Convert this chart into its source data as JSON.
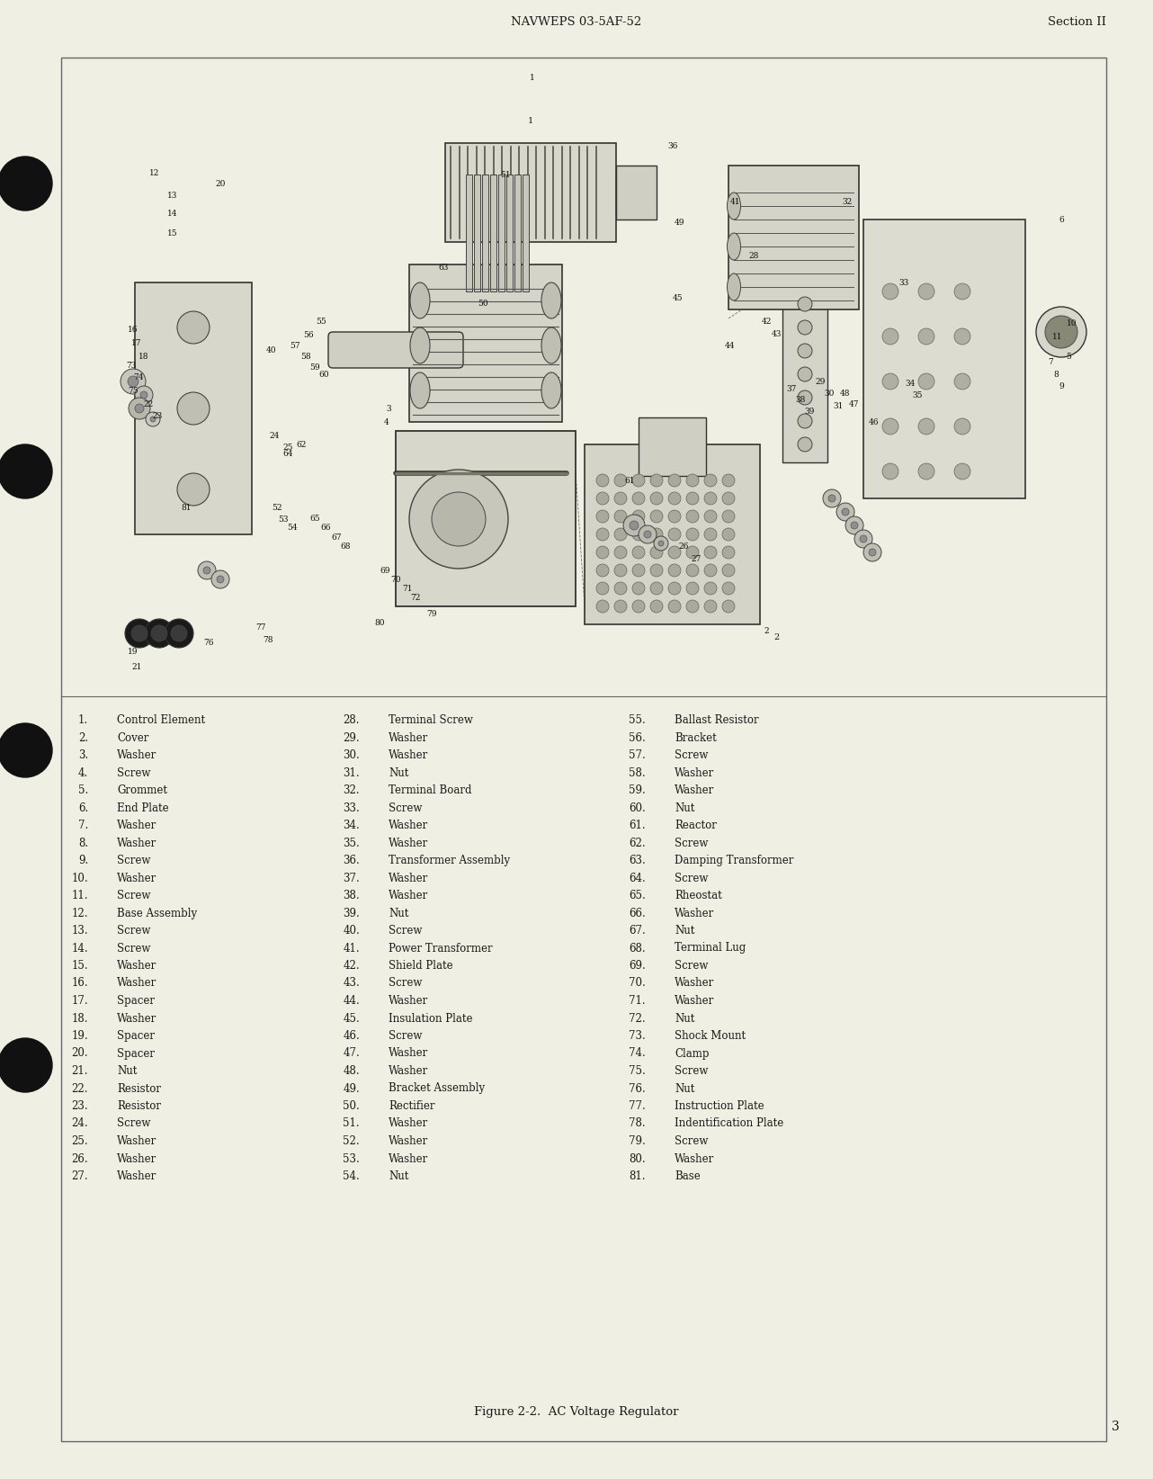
{
  "bg_color": "#f0efe3",
  "page_bg": "#f0efe3",
  "header_left": "NAVWEPS 03-5AF-52",
  "header_right": "Section II",
  "footer_text": "Figure 2-2.  AC Voltage Regulator",
  "page_number": "3",
  "body_fontsize": 8.5,
  "text_color": "#1a1a1a",
  "items_col1": [
    [
      "1.",
      "Control Element"
    ],
    [
      "2.",
      "Cover"
    ],
    [
      "3.",
      "Washer"
    ],
    [
      "4.",
      "Screw"
    ],
    [
      "5.",
      "Grommet"
    ],
    [
      "6.",
      "End Plate"
    ],
    [
      "7.",
      "Washer"
    ],
    [
      "8.",
      "Washer"
    ],
    [
      "9.",
      "Screw"
    ],
    [
      "10.",
      "Washer"
    ],
    [
      "11.",
      "Screw"
    ],
    [
      "12.",
      "Base Assembly"
    ],
    [
      "13.",
      "Screw"
    ],
    [
      "14.",
      "Screw"
    ],
    [
      "15.",
      "Washer"
    ],
    [
      "16.",
      "Washer"
    ],
    [
      "17.",
      "Spacer"
    ],
    [
      "18.",
      "Washer"
    ],
    [
      "19.",
      "Spacer"
    ],
    [
      "20.",
      "Spacer"
    ],
    [
      "21.",
      "Nut"
    ],
    [
      "22.",
      "Resistor"
    ],
    [
      "23.",
      "Resistor"
    ],
    [
      "24.",
      "Screw"
    ],
    [
      "25.",
      "Washer"
    ],
    [
      "26.",
      "Washer"
    ],
    [
      "27.",
      "Washer"
    ]
  ],
  "items_col2": [
    [
      "28.",
      "Terminal Screw"
    ],
    [
      "29.",
      "Washer"
    ],
    [
      "30.",
      "Washer"
    ],
    [
      "31.",
      "Nut"
    ],
    [
      "32.",
      "Terminal Board"
    ],
    [
      "33.",
      "Screw"
    ],
    [
      "34.",
      "Washer"
    ],
    [
      "35.",
      "Washer"
    ],
    [
      "36.",
      "Transformer Assembly"
    ],
    [
      "37.",
      "Washer"
    ],
    [
      "38.",
      "Washer"
    ],
    [
      "39.",
      "Nut"
    ],
    [
      "40.",
      "Screw"
    ],
    [
      "41.",
      "Power Transformer"
    ],
    [
      "42.",
      "Shield Plate"
    ],
    [
      "43.",
      "Screw"
    ],
    [
      "44.",
      "Washer"
    ],
    [
      "45.",
      "Insulation Plate"
    ],
    [
      "46.",
      "Screw"
    ],
    [
      "47.",
      "Washer"
    ],
    [
      "48.",
      "Washer"
    ],
    [
      "49.",
      "Bracket Assembly"
    ],
    [
      "50.",
      "Rectifier"
    ],
    [
      "51.",
      "Washer"
    ],
    [
      "52.",
      "Washer"
    ],
    [
      "53.",
      "Washer"
    ],
    [
      "54.",
      "Nut"
    ]
  ],
  "items_col3": [
    [
      "55.",
      "Ballast Resistor"
    ],
    [
      "56.",
      "Bracket"
    ],
    [
      "57.",
      "Screw"
    ],
    [
      "58.",
      "Washer"
    ],
    [
      "59.",
      "Washer"
    ],
    [
      "60.",
      "Nut"
    ],
    [
      "61.",
      "Reactor"
    ],
    [
      "62.",
      "Screw"
    ],
    [
      "63.",
      "Damping Transformer"
    ],
    [
      "64.",
      "Screw"
    ],
    [
      "65.",
      "Rheostat"
    ],
    [
      "66.",
      "Washer"
    ],
    [
      "67.",
      "Nut"
    ],
    [
      "68.",
      "Terminal Lug"
    ],
    [
      "69.",
      "Screw"
    ],
    [
      "70.",
      "Washer"
    ],
    [
      "71.",
      "Washer"
    ],
    [
      "72.",
      "Nut"
    ],
    [
      "73.",
      "Shock Mount"
    ],
    [
      "74.",
      "Clamp"
    ],
    [
      "75.",
      "Screw"
    ],
    [
      "76.",
      "Nut"
    ],
    [
      "77.",
      "Instruction Plate"
    ],
    [
      "78.",
      "Indentification Plate"
    ],
    [
      "79.",
      "Screw"
    ],
    [
      "80.",
      "Washer"
    ],
    [
      "81.",
      "Base"
    ]
  ]
}
